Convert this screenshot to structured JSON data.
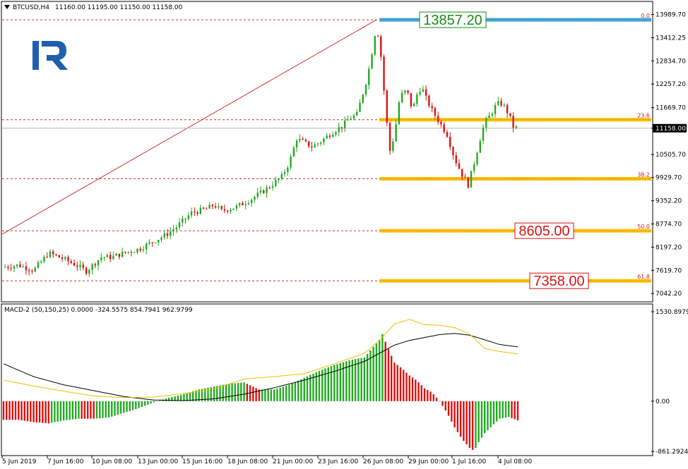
{
  "header": {
    "symbol": "BTCUSD,H4",
    "ohlc": "11160.00 11195.00 11150.00 11158.00"
  },
  "indicator": {
    "label": "MACD-2 (50,150,25) 0.0000 -324.5575 854.7941 962.9799"
  },
  "colors": {
    "bull": "#22aa22",
    "bear": "#dd1111",
    "fib_band": "#ffc000",
    "top_band": "#39a7e0",
    "grid_line": "#d03030",
    "macd_line": "#000000",
    "signal_line": "#f0c000",
    "logo": "#1f5fae"
  },
  "price_axis": {
    "ticks": [
      "13989.70",
      "13412.25",
      "12834.70",
      "12257.20",
      "11669.70",
      "11158.00",
      "10505.70",
      "9929.70",
      "9352.20",
      "8774.70",
      "8197.20",
      "7619.70",
      "7042.20"
    ],
    "current": "11158.00"
  },
  "macd_axis": {
    "ticks": [
      "1530.8979",
      "0.00",
      "-861.2924"
    ]
  },
  "time_axis": {
    "ticks": [
      "5 Jun 2019",
      "7 Jun 16:00",
      "10 Jun 08:00",
      "13 Jun 00:00",
      "15 Jun 16:00",
      "18 Jun 08:00",
      "21 Jun 00:00",
      "23 Jun 16:00",
      "26 Jun 08:00",
      "29 Jun 00:00",
      "1 Jul 16:00",
      "4 Jul 08:00"
    ]
  },
  "fib_levels": [
    {
      "label": "0.0",
      "price": 13857.2,
      "big": "13857.20",
      "big_color": "#1a8a1a"
    },
    {
      "label": "23.6",
      "price": 11370,
      "big": "",
      "big_color": ""
    },
    {
      "label": "38.2",
      "price": 9899,
      "big": "",
      "big_color": ""
    },
    {
      "label": "50.0",
      "price": 8605,
      "big": "8605.00",
      "big_color": "#dd1111"
    },
    {
      "label": "61.8",
      "price": 7358,
      "big": "7358.00",
      "big_color": "#dd1111"
    }
  ],
  "chart_data": {
    "type": "candlestick",
    "ylim": [
      6870,
      14280
    ],
    "macd_ylim": [
      -920,
      1640
    ],
    "bars": 180,
    "prices_anchor": [
      [
        0,
        7700
      ],
      [
        10,
        7750
      ],
      [
        20,
        7620
      ],
      [
        30,
        8050
      ],
      [
        40,
        7900
      ],
      [
        50,
        7720
      ],
      [
        55,
        7600
      ],
      [
        65,
        7950
      ],
      [
        72,
        7950
      ],
      [
        80,
        8050
      ],
      [
        90,
        8150
      ],
      [
        100,
        8350
      ],
      [
        108,
        8500
      ],
      [
        115,
        8700
      ],
      [
        125,
        9050
      ],
      [
        135,
        9150
      ],
      [
        140,
        9250
      ],
      [
        145,
        9100
      ],
      [
        155,
        9200
      ],
      [
        165,
        9400
      ],
      [
        175,
        9650
      ],
      [
        185,
        9950
      ],
      [
        190,
        10300
      ],
      [
        195,
        10900
      ],
      [
        200,
        10800
      ],
      [
        205,
        10700
      ],
      [
        210,
        10800
      ],
      [
        215,
        10950
      ],
      [
        220,
        11100
      ],
      [
        225,
        11200
      ],
      [
        230,
        11400
      ],
      [
        235,
        11500
      ],
      [
        238,
        11900
      ],
      [
        241,
        12300
      ],
      [
        244,
        12800
      ],
      [
        246,
        13300
      ],
      [
        248,
        13700
      ],
      [
        250,
        13300
      ],
      [
        252,
        12600
      ],
      [
        254,
        11600
      ],
      [
        257,
        10600
      ],
      [
        260,
        11000
      ],
      [
        263,
        11800
      ],
      [
        266,
        12100
      ],
      [
        269,
        12000
      ],
      [
        272,
        11600
      ],
      [
        275,
        12000
      ],
      [
        278,
        12200
      ],
      [
        281,
        11900
      ],
      [
        285,
        11600
      ],
      [
        290,
        11300
      ],
      [
        295,
        11000
      ],
      [
        300,
        10400
      ],
      [
        305,
        10000
      ],
      [
        309,
        9750
      ],
      [
        313,
        10300
      ],
      [
        317,
        10900
      ],
      [
        320,
        11300
      ],
      [
        324,
        11500
      ],
      [
        327,
        11700
      ],
      [
        330,
        11800
      ],
      [
        333,
        11700
      ],
      [
        336,
        11500
      ],
      [
        339,
        11200
      ],
      [
        342,
        11158
      ]
    ],
    "macd_anchor": [
      [
        0,
        -320
      ],
      [
        10,
        -320
      ],
      [
        20,
        -360
      ],
      [
        30,
        -380
      ],
      [
        40,
        -330
      ],
      [
        50,
        -300
      ],
      [
        60,
        -300
      ],
      [
        70,
        -280
      ],
      [
        80,
        -200
      ],
      [
        90,
        -120
      ],
      [
        100,
        -20
      ],
      [
        110,
        60
      ],
      [
        120,
        120
      ],
      [
        130,
        200
      ],
      [
        140,
        250
      ],
      [
        150,
        300
      ],
      [
        160,
        320
      ],
      [
        170,
        200
      ],
      [
        180,
        200
      ],
      [
        190,
        280
      ],
      [
        200,
        400
      ],
      [
        210,
        520
      ],
      [
        220,
        620
      ],
      [
        230,
        700
      ],
      [
        240,
        750
      ],
      [
        245,
        900
      ],
      [
        250,
        1050
      ],
      [
        252,
        1150
      ],
      [
        255,
        950
      ],
      [
        260,
        660
      ],
      [
        265,
        560
      ],
      [
        270,
        440
      ],
      [
        275,
        350
      ],
      [
        280,
        220
      ],
      [
        285,
        150
      ],
      [
        290,
        0
      ],
      [
        295,
        -200
      ],
      [
        300,
        -450
      ],
      [
        305,
        -650
      ],
      [
        310,
        -800
      ],
      [
        313,
        -850
      ],
      [
        316,
        -700
      ],
      [
        320,
        -550
      ],
      [
        325,
        -420
      ],
      [
        330,
        -300
      ],
      [
        336,
        -270
      ],
      [
        342,
        -330
      ]
    ],
    "macd_main_anchor": [
      [
        0,
        640
      ],
      [
        20,
        420
      ],
      [
        40,
        280
      ],
      [
        60,
        180
      ],
      [
        80,
        80
      ],
      [
        100,
        20
      ],
      [
        120,
        10
      ],
      [
        140,
        40
      ],
      [
        160,
        120
      ],
      [
        180,
        230
      ],
      [
        200,
        360
      ],
      [
        220,
        510
      ],
      [
        240,
        680
      ],
      [
        250,
        820
      ],
      [
        260,
        960
      ],
      [
        270,
        1040
      ],
      [
        280,
        1090
      ],
      [
        290,
        1140
      ],
      [
        300,
        1160
      ],
      [
        310,
        1130
      ],
      [
        320,
        1050
      ],
      [
        330,
        970
      ],
      [
        342,
        930
      ]
    ],
    "signal_anchor": [
      [
        0,
        360
      ],
      [
        20,
        260
      ],
      [
        40,
        170
      ],
      [
        60,
        90
      ],
      [
        80,
        60
      ],
      [
        100,
        70
      ],
      [
        120,
        130
      ],
      [
        140,
        210
      ],
      [
        160,
        380
      ],
      [
        180,
        420
      ],
      [
        200,
        470
      ],
      [
        220,
        640
      ],
      [
        240,
        820
      ],
      [
        250,
        1040
      ],
      [
        260,
        1320
      ],
      [
        270,
        1400
      ],
      [
        280,
        1310
      ],
      [
        290,
        1300
      ],
      [
        300,
        1260
      ],
      [
        310,
        1150
      ],
      [
        320,
        900
      ],
      [
        330,
        850
      ],
      [
        342,
        810
      ]
    ]
  }
}
